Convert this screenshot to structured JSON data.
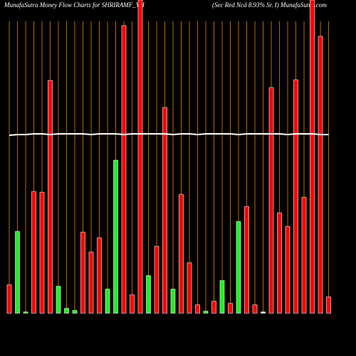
{
  "chart_data": {
    "type": "bar",
    "title": "MunafaSutra  Money Flow  Charts for SHRIRAMF_VH",
    "subtitle": "(Sec Red Ncd 8.93% Sr. I) MunafaSutra.com",
    "categories": [
      null,
      null,
      null,
      null,
      null,
      null,
      null,
      null,
      null,
      null,
      null,
      null,
      null,
      null,
      null,
      null,
      null,
      null,
      null,
      null,
      null,
      null,
      null,
      null,
      null,
      null,
      null,
      null,
      null,
      null,
      null,
      null,
      null,
      null,
      null,
      null,
      null,
      null,
      null,
      null
    ],
    "values": [
      40,
      115,
      2,
      171,
      170,
      327,
      38,
      7,
      4,
      114,
      86,
      106,
      34,
      215,
      404,
      26,
      440,
      53,
      94,
      289,
      34,
      167,
      71,
      12,
      3,
      17,
      46,
      14,
      129,
      150,
      12,
      2,
      317,
      141,
      122,
      328,
      163,
      440,
      389,
      23
    ],
    "colors": [
      "#ff0000",
      "#22ee22",
      "#22ee22",
      "#ff0000",
      "#ff0000",
      "#ff0000",
      "#22ee22",
      "#22ee22",
      "#22ee22",
      "#ff0000",
      "#ff0000",
      "#ff0000",
      "#22ee22",
      "#22ee22",
      "#ff0000",
      "#ff0000",
      "#ff0000",
      "#22ee22",
      "#ff0000",
      "#ff0000",
      "#22ee22",
      "#ff0000",
      "#ff0000",
      "#ff0000",
      "#22ee22",
      "#ff0000",
      "#22ee22",
      "#ff0000",
      "#22ee22",
      "#ff0000",
      "#ff0000",
      "#ffffff",
      "#ff0000",
      "#ff0000",
      "#ff0000",
      "#ff0000",
      "#ff0000",
      "#ff0000",
      "#ff0000",
      "#ff0000"
    ],
    "line": {
      "color": "#ffffff",
      "values": [
        250,
        251,
        251,
        252,
        252,
        251,
        252,
        252,
        252,
        252,
        251,
        252,
        252,
        252,
        251,
        252,
        252,
        252,
        252,
        252,
        251,
        252,
        252,
        251,
        252,
        252,
        252,
        252,
        251,
        252,
        252,
        252,
        252,
        252,
        251,
        252,
        252,
        252,
        251,
        251
      ]
    },
    "ylim": [
      0,
      440
    ],
    "grid_color": "#b86a00"
  }
}
